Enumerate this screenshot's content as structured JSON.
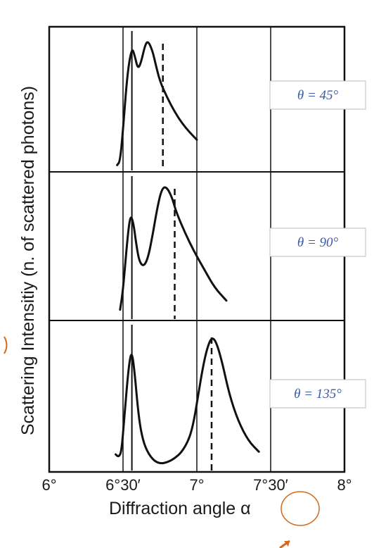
{
  "chart_data": {
    "type": "line",
    "ylabel": "Scattering Intensitiy (n. of scattered photons)",
    "xlabel": "Diffraction angle α",
    "x_ticks": [
      "6°",
      "6°30′",
      "7°",
      "7°30′",
      "8°"
    ],
    "x_tick_values": [
      6.0,
      6.5,
      7.0,
      7.5,
      8.0
    ],
    "xlim": [
      6.0,
      8.0
    ],
    "grid": true,
    "colors": {
      "curve": "#111111",
      "frame": "#111111",
      "annotation": "#3b5aa6",
      "circle": "#d2691e"
    },
    "panels": [
      {
        "label": "θ = 45°",
        "dashed_line_x": 6.77,
        "solid_line_x": 6.56,
        "x": [
          6.46,
          6.48,
          6.5,
          6.53,
          6.56,
          6.58,
          6.6,
          6.62,
          6.65,
          6.67,
          6.7,
          6.72,
          6.75,
          6.8,
          6.85,
          6.9,
          6.95,
          7.0
        ],
        "y": [
          0.02,
          0.05,
          0.3,
          0.75,
          0.95,
          0.88,
          0.78,
          0.82,
          0.97,
          1.0,
          0.92,
          0.82,
          0.68,
          0.55,
          0.44,
          0.35,
          0.28,
          0.22
        ]
      },
      {
        "label": "θ = 90°",
        "dashed_line_x": 6.85,
        "solid_line_x": 6.56,
        "x": [
          6.48,
          6.5,
          6.53,
          6.55,
          6.57,
          6.59,
          6.61,
          6.64,
          6.67,
          6.7,
          6.73,
          6.76,
          6.79,
          6.83,
          6.86,
          6.92,
          6.98,
          7.05,
          7.12,
          7.2
        ],
        "y": [
          0.05,
          0.2,
          0.6,
          0.78,
          0.72,
          0.55,
          0.42,
          0.38,
          0.45,
          0.62,
          0.82,
          0.97,
          1.0,
          0.92,
          0.8,
          0.64,
          0.5,
          0.36,
          0.22,
          0.12
        ]
      },
      {
        "label": "θ = 135°",
        "dashed_line_x": 7.1,
        "solid_line_x": 6.56,
        "x": [
          6.45,
          6.47,
          6.49,
          6.51,
          6.54,
          6.56,
          6.58,
          6.6,
          6.62,
          6.65,
          6.7,
          6.75,
          6.8,
          6.85,
          6.9,
          6.95,
          6.98,
          7.01,
          7.04,
          7.07,
          7.1,
          7.13,
          7.17,
          7.22,
          7.28,
          7.35,
          7.42
        ],
        "y": [
          0.1,
          0.08,
          0.12,
          0.4,
          0.78,
          0.88,
          0.7,
          0.45,
          0.28,
          0.15,
          0.06,
          0.03,
          0.04,
          0.07,
          0.12,
          0.22,
          0.35,
          0.55,
          0.75,
          0.9,
          0.98,
          0.95,
          0.8,
          0.55,
          0.35,
          0.2,
          0.12
        ]
      }
    ]
  }
}
